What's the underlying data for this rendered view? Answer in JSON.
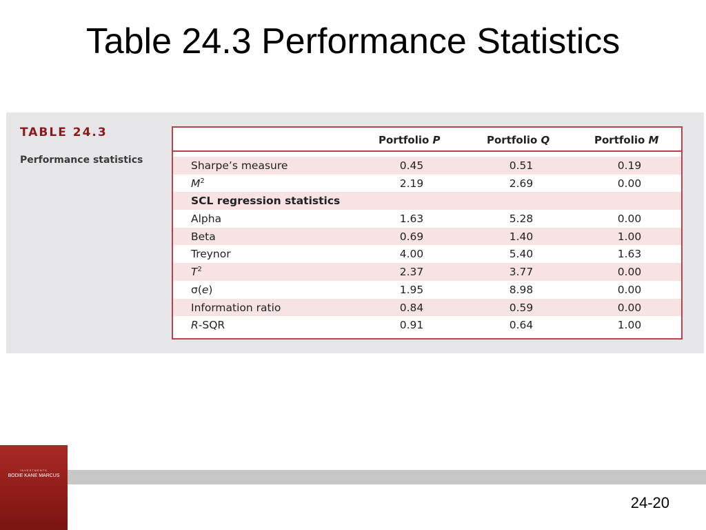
{
  "slide": {
    "title": "Table 24.3 Performance Statistics",
    "page_number": "24-20"
  },
  "table": {
    "label": "TABLE 24.3",
    "caption": "Performance statistics",
    "columns": [
      {
        "prefix": "Portfolio ",
        "italic": "P"
      },
      {
        "prefix": "Portfolio ",
        "italic": "Q"
      },
      {
        "prefix": "Portfolio ",
        "italic": "M"
      }
    ],
    "rows": [
      {
        "label": "Sharpe’s measure",
        "values": [
          "0.45",
          "0.51",
          "0.19"
        ]
      },
      {
        "label_italic": "M",
        "label_sup": "2",
        "values": [
          "2.19",
          "2.69",
          "0.00"
        ]
      },
      {
        "label": "SCL regression statistics",
        "values": [
          "",
          "",
          ""
        ]
      },
      {
        "label": "Alpha",
        "values": [
          "1.63",
          "5.28",
          "0.00"
        ]
      },
      {
        "label": "Beta",
        "values": [
          "0.69",
          "1.40",
          "1.00"
        ]
      },
      {
        "label": "Treynor",
        "values": [
          "4.00",
          "5.40",
          "1.63"
        ]
      },
      {
        "label_italic": "T",
        "label_sup": "2",
        "values": [
          "2.37",
          "3.77",
          "0.00"
        ]
      },
      {
        "label_pre": "σ(",
        "label_italic": "e",
        "label_post": ")",
        "values": [
          "1.95",
          "8.98",
          "0.00"
        ]
      },
      {
        "label": "Information ratio",
        "values": [
          "0.84",
          "0.59",
          "0.00"
        ]
      },
      {
        "label_italic": "R",
        "label_post": "-SQR",
        "values": [
          "0.91",
          "0.64",
          "1.00"
        ]
      }
    ]
  },
  "book_cover": {
    "series": "INVESTMENTS",
    "authors": "BODIE   KANE   MARCUS"
  }
}
